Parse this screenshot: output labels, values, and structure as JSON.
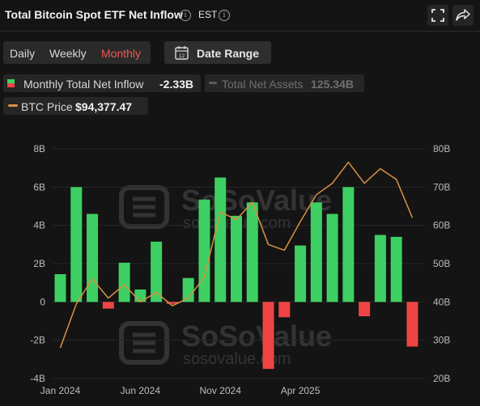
{
  "header": {
    "title": "Total Bitcoin Spot ETF Net Inflow",
    "timezone": "EST",
    "icons": [
      "info-icon",
      "fullscreen-icon",
      "share-icon"
    ]
  },
  "tabs": [
    {
      "label": "Daily",
      "active": false
    },
    {
      "label": "Weekly",
      "active": false
    },
    {
      "label": "Monthly",
      "active": true
    }
  ],
  "date_range_label": "Date Range",
  "calendar_day": "12",
  "legend": {
    "inflow_label": "Monthly Total Net Inflow",
    "inflow_value": "-2.33B",
    "assets_label": "Total Net Assets",
    "assets_value": "125.34B",
    "price_label": "BTC Price",
    "price_value": "$94,377.47"
  },
  "watermark": {
    "name": "SoSoValue",
    "url": "sosovalue.com"
  },
  "colors": {
    "positive": "#3ecf62",
    "negative": "#ef4444",
    "price": "#d9923f",
    "active_tab": "#f0584e",
    "background": "#141414"
  },
  "chart_data": {
    "type": "bar",
    "left_axis": {
      "ticks": [
        "8B",
        "6B",
        "4B",
        "2B",
        "0",
        "-2B",
        "-4B"
      ],
      "ylim": [
        -4,
        8
      ],
      "unit": "B"
    },
    "right_axis": {
      "ticks": [
        "80B",
        "70B",
        "60B",
        "50B",
        "40B",
        "30B",
        "20B"
      ],
      "ylim": [
        20,
        80
      ],
      "unit": "B"
    },
    "x_ticks": [
      {
        "label": "Jan 2024",
        "index": 0
      },
      {
        "label": "Jun 2024",
        "index": 5
      },
      {
        "label": "Nov 2024",
        "index": 10
      },
      {
        "label": "Apr 2025",
        "index": 15
      }
    ],
    "categories": [
      "Jan 2024",
      "Feb 2024",
      "Mar 2024",
      "Apr 2024",
      "May 2024",
      "Jun 2024",
      "Jul 2024",
      "Aug 2024",
      "Sep 2024",
      "Oct 2024",
      "Nov 2024",
      "Dec 2024",
      "Jan 2025",
      "Feb 2025",
      "Mar 2025",
      "Apr 2025",
      "May 2025",
      "Jun 2025",
      "Jul 2025",
      "Aug 2025",
      "Sep 2025",
      "Oct 2025",
      "Nov 2025"
    ],
    "series": [
      {
        "name": "Monthly Total Net Inflow",
        "kind": "bar",
        "axis": "left",
        "values": [
          1.45,
          6.0,
          4.6,
          -0.35,
          2.05,
          0.65,
          3.15,
          -0.1,
          1.25,
          5.35,
          6.5,
          4.5,
          5.2,
          -3.5,
          -0.8,
          2.95,
          5.2,
          4.6,
          6.0,
          -0.75,
          3.5,
          3.4,
          -2.33
        ]
      },
      {
        "name": "BTC Price",
        "kind": "line",
        "axis": "right",
        "values": [
          28.0,
          39.5,
          46.0,
          41.0,
          44.5,
          40.0,
          42.5,
          39.0,
          41.0,
          46.5,
          63.5,
          61.5,
          66.0,
          55.0,
          53.5,
          61.0,
          68.0,
          71.0,
          76.5,
          71.0,
          74.8,
          72.0,
          62.0
        ]
      }
    ]
  }
}
